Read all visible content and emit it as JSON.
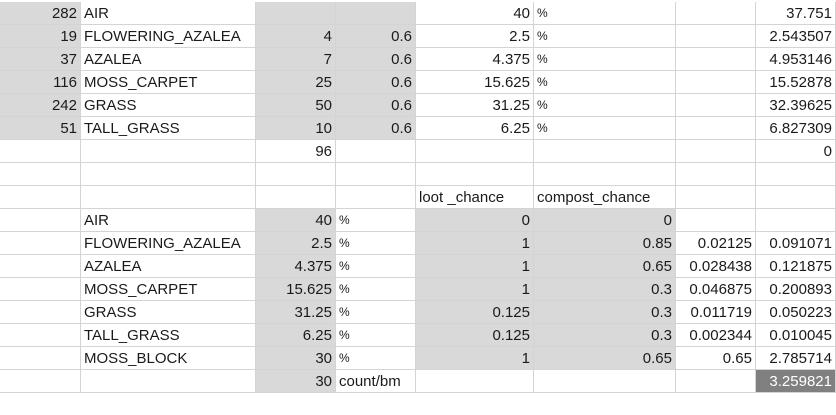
{
  "sheet": {
    "rows": [
      [
        "282",
        "AIR",
        "",
        "",
        "40",
        "%",
        "",
        "",
        "37.751"
      ],
      [
        "19",
        "FLOWERING_AZALEA",
        "4",
        "0.6",
        "2.5",
        "%",
        "",
        "",
        "2.543507"
      ],
      [
        "37",
        "AZALEA",
        "7",
        "0.6",
        "4.375",
        "%",
        "",
        "",
        "4.953146"
      ],
      [
        "116",
        "MOSS_CARPET",
        "25",
        "0.6",
        "15.625",
        "%",
        "",
        "",
        "15.52878"
      ],
      [
        "242",
        "GRASS",
        "50",
        "0.6",
        "31.25",
        "%",
        "",
        "",
        "32.39625"
      ],
      [
        "51",
        "TALL_GRASS",
        "10",
        "0.6",
        "6.25",
        "%",
        "",
        "",
        "6.827309"
      ],
      [
        "",
        "",
        "96",
        "",
        "",
        "",
        "",
        "",
        "0"
      ],
      [
        "",
        "",
        "",
        "",
        "",
        "",
        "",
        "",
        ""
      ],
      [
        "",
        "",
        "",
        "",
        "loot _chance",
        "compost_chance",
        "",
        "",
        ""
      ],
      [
        "",
        "AIR",
        "40",
        "%",
        "0",
        "0",
        "",
        "",
        ""
      ],
      [
        "",
        "FLOWERING_AZALEA",
        "2.5",
        "%",
        "1",
        "0.85",
        "",
        "0.02125",
        "0.091071"
      ],
      [
        "",
        "AZALEA",
        "4.375",
        "%",
        "1",
        "0.65",
        "",
        "0.028438",
        "0.121875"
      ],
      [
        "",
        "MOSS_CARPET",
        "15.625",
        "%",
        "1",
        "0.3",
        "",
        "0.046875",
        "0.200893"
      ],
      [
        "",
        "GRASS",
        "31.25",
        "%",
        "0.125",
        "0.3",
        "",
        "0.011719",
        "0.050223"
      ],
      [
        "",
        "TALL_GRASS",
        "6.25",
        "%",
        "0.125",
        "0.3",
        "",
        "0.002344",
        "0.010045"
      ],
      [
        "",
        "MOSS_BLOCK",
        "30",
        "%",
        "1",
        "0.65",
        "",
        "0.65",
        "2.785714"
      ],
      [
        "",
        "",
        "30",
        "count/bm",
        "",
        "",
        "",
        "",
        "3.259821"
      ]
    ]
  }
}
